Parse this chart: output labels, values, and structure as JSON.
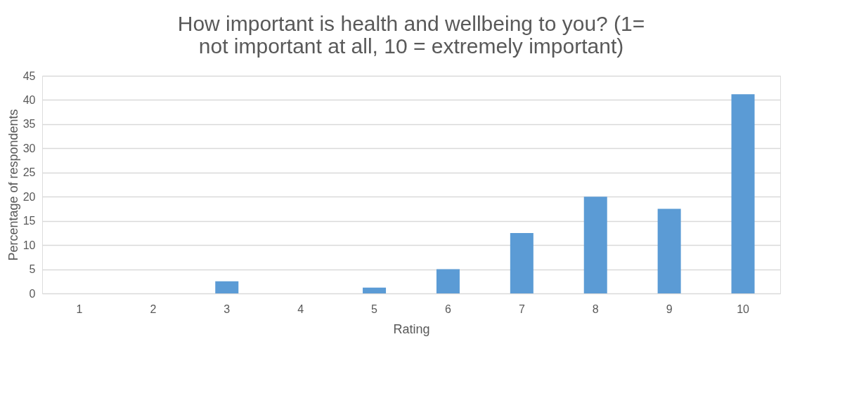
{
  "chart_data": {
    "type": "bar",
    "title": "How important is health and wellbeing to you? (1= not important at all, 10 = extremely important)",
    "xlabel": "Rating",
    "ylabel": "Percentage of respondents",
    "categories": [
      "1",
      "2",
      "3",
      "4",
      "5",
      "6",
      "7",
      "8",
      "9",
      "10"
    ],
    "values": [
      0,
      0,
      2.5,
      0,
      1.2,
      5,
      12.5,
      20,
      17.5,
      41.2
    ],
    "color": "#5b9bd5",
    "ylim": [
      0,
      45
    ],
    "yticks": [
      0,
      5,
      10,
      15,
      20,
      25,
      30,
      35,
      40,
      45
    ],
    "grid": "y"
  }
}
